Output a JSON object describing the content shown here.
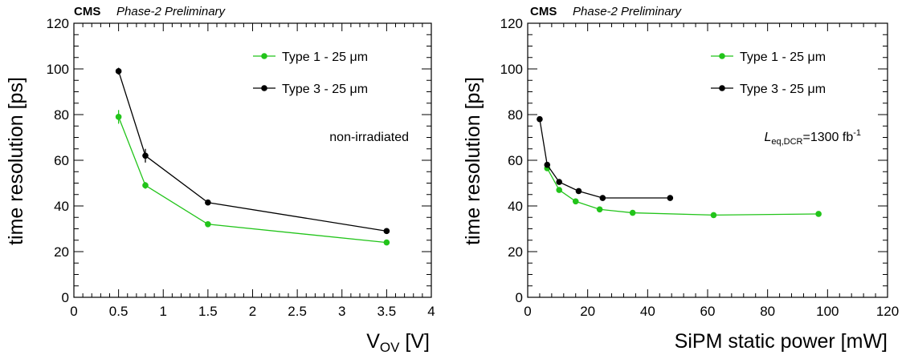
{
  "chart_data": [
    {
      "type": "line",
      "experiment": "CMS",
      "status": "Phase-2 Preliminary",
      "xlabel_main": "V",
      "xlabel_sub": "OV",
      "xlabel_unit": " [V]",
      "ylabel": "time resolution [ps]",
      "xlim": [
        0,
        4
      ],
      "ylim": [
        0,
        120
      ],
      "xticks": [
        "0",
        "0.5",
        "1",
        "1.5",
        "2",
        "2.5",
        "3",
        "3.5",
        "4"
      ],
      "yticks": [
        "0",
        "20",
        "40",
        "60",
        "80",
        "100",
        "120"
      ],
      "annotation": "non-irradiated",
      "legend_position": "top-right",
      "series": [
        {
          "name": "Type 1 - 25 μm",
          "color": "#22c41a",
          "x": [
            0.5,
            0.8,
            1.5,
            3.5
          ],
          "y": [
            79,
            49,
            32,
            24
          ],
          "yerr": [
            3,
            1.5,
            1,
            1
          ]
        },
        {
          "name": "Type 3 - 25 μm",
          "color": "#000000",
          "x": [
            0.5,
            0.8,
            1.5,
            3.5
          ],
          "y": [
            99,
            62,
            41.5,
            29
          ],
          "yerr": [
            1.5,
            3,
            1,
            1
          ]
        }
      ]
    },
    {
      "type": "line",
      "experiment": "CMS",
      "status": "Phase-2 Preliminary",
      "xlabel": "SiPM static power [mW]",
      "ylabel": "time resolution [ps]",
      "xlim": [
        0,
        120
      ],
      "ylim": [
        0,
        120
      ],
      "xticks": [
        "0",
        "20",
        "40",
        "60",
        "80",
        "100",
        "120"
      ],
      "yticks": [
        "0",
        "20",
        "40",
        "60",
        "80",
        "100",
        "120"
      ],
      "annotation_main": "L",
      "annotation_sub": "eq,DCR",
      "annotation_rest": "=1300 fb",
      "annotation_sup": "-1",
      "legend_position": "top-right",
      "series": [
        {
          "name": "Type 1 - 25 μm",
          "color": "#22c41a",
          "x": [
            6.5,
            10.5,
            16,
            24,
            35,
            62,
            97
          ],
          "y": [
            56.5,
            47,
            42,
            38.5,
            37,
            36,
            36.5
          ]
        },
        {
          "name": "Type 3 - 25 μm",
          "color": "#000000",
          "x": [
            4,
            6.5,
            10.5,
            17,
            25,
            47.5
          ],
          "y": [
            78,
            58,
            50.5,
            46.5,
            43.5,
            43.5
          ]
        }
      ]
    }
  ]
}
